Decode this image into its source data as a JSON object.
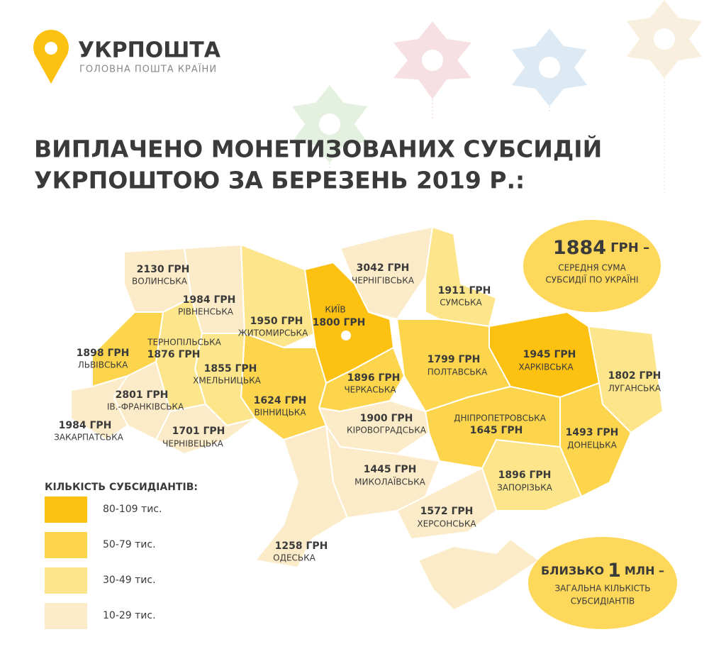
{
  "header": {
    "brand": "УКРПОШТА",
    "tagline": "ГОЛОВНА ПОШТА КРАЇНИ"
  },
  "title": [
    "ВИПЛАЧЕНО МОНЕТИЗОВАНИХ СУБСИДІЙ",
    "УКРПОШТОЮ ЗА БЕРЕЗЕНЬ 2019 Р.:"
  ],
  "regions": [
    {
      "name": "ВОЛИНСЬКА",
      "amount": "2130 ГРН",
      "color": "#fcebc8"
    },
    {
      "name": "РІВНЕНСЬКА",
      "amount": "1984 ГРН",
      "color": "#fcebc8"
    },
    {
      "name": "ЖИТОМИРСЬКА",
      "amount": "1950 ГРН",
      "color": "#fce58a"
    },
    {
      "name": "КИЇВ",
      "amount": "1800 ГРН",
      "color": "#fdc112"
    },
    {
      "name": "ЧЕРНІГІВСЬКА",
      "amount": "3042 ГРН",
      "color": "#fcebc8"
    },
    {
      "name": "СУМСЬКА",
      "amount": "1911 ГРН",
      "color": "#fce58a"
    },
    {
      "name": "ХАРКІВСЬКА",
      "amount": "1945 ГРН",
      "color": "#fdc112"
    },
    {
      "name": "ЛУГАНСЬКА",
      "amount": "1802 ГРН",
      "color": "#fce58a"
    },
    {
      "name": "ДОНЕЦЬКА",
      "amount": "1493 ГРН",
      "color": "#fcd54c"
    },
    {
      "name": "ЗАПОРІЗЬКА",
      "amount": "1896 ГРН",
      "color": "#fce58a"
    },
    {
      "name": "ДНІПРОПЕТРОВСЬКА",
      "amount": "1645 ГРН",
      "color": "#fcd54c"
    },
    {
      "name": "ПОЛТАВСЬКА",
      "amount": "1799 ГРН",
      "color": "#fcd54c"
    },
    {
      "name": "ЧЕРКАСЬКА",
      "amount": "1896 ГРН",
      "color": "#fcd54c"
    },
    {
      "name": "КІРОВОГРАДСЬКА",
      "amount": "1900 ГРН",
      "color": "#fcebc8"
    },
    {
      "name": "МИКОЛАЇВСЬКА",
      "amount": "1445 ГРН",
      "color": "#fcebc8"
    },
    {
      "name": "ХЕРСОНСЬКА",
      "amount": "1572 ГРН",
      "color": "#fcebc8"
    },
    {
      "name": "ОДЕСЬКА",
      "amount": "1258 ГРН",
      "color": "#fcebc8"
    },
    {
      "name": "ВІННИЦЬКА",
      "amount": "1624 ГРН",
      "color": "#fcd54c"
    },
    {
      "name": "ХМЕЛЬНИЦЬКА",
      "amount": "1855 ГРН",
      "color": "#fce58a"
    },
    {
      "name": "ТЕРНОПІЛЬСЬКА",
      "amount": "1876 ГРН",
      "color": "#fce58a"
    },
    {
      "name": "ЛЬВІВСЬКА",
      "amount": "1898 ГРН",
      "color": "#fcd54c"
    },
    {
      "name": "ІВ.-ФРАНКІВСЬКА",
      "amount": "2801 ГРН",
      "color": "#fcebc8"
    },
    {
      "name": "ЗАКАРПАТСЬКА",
      "amount": "1984 ГРН",
      "color": "#fcebc8"
    },
    {
      "name": "ЧЕРНІВЕЦЬКА",
      "amount": "1701 ГРН",
      "color": "#fcebc8"
    }
  ],
  "average": {
    "value": "1884",
    "unit": "ГРН –",
    "lines": [
      "СЕРЕДНЯ СУМА",
      "СУБСИДІЇ ПО УКРАЇНІ"
    ]
  },
  "total": {
    "prefix": "БЛИЗЬКО",
    "value": "1",
    "unit": "МЛН –",
    "lines": [
      "ЗАГАЛЬНА КІЛЬКІСТЬ",
      "СУБСИДІАНТІВ"
    ]
  },
  "legend": {
    "title": "КІЛЬКІСТЬ СУБСИДІАНТІВ:",
    "items": [
      {
        "label": "80-109 тис.",
        "color": "#fdc112"
      },
      {
        "label": "50-79 тис.",
        "color": "#fcd54c"
      },
      {
        "label": "30-49 тис.",
        "color": "#fce58a"
      },
      {
        "label": "10-29 тис.",
        "color": "#fcebc8"
      }
    ]
  }
}
